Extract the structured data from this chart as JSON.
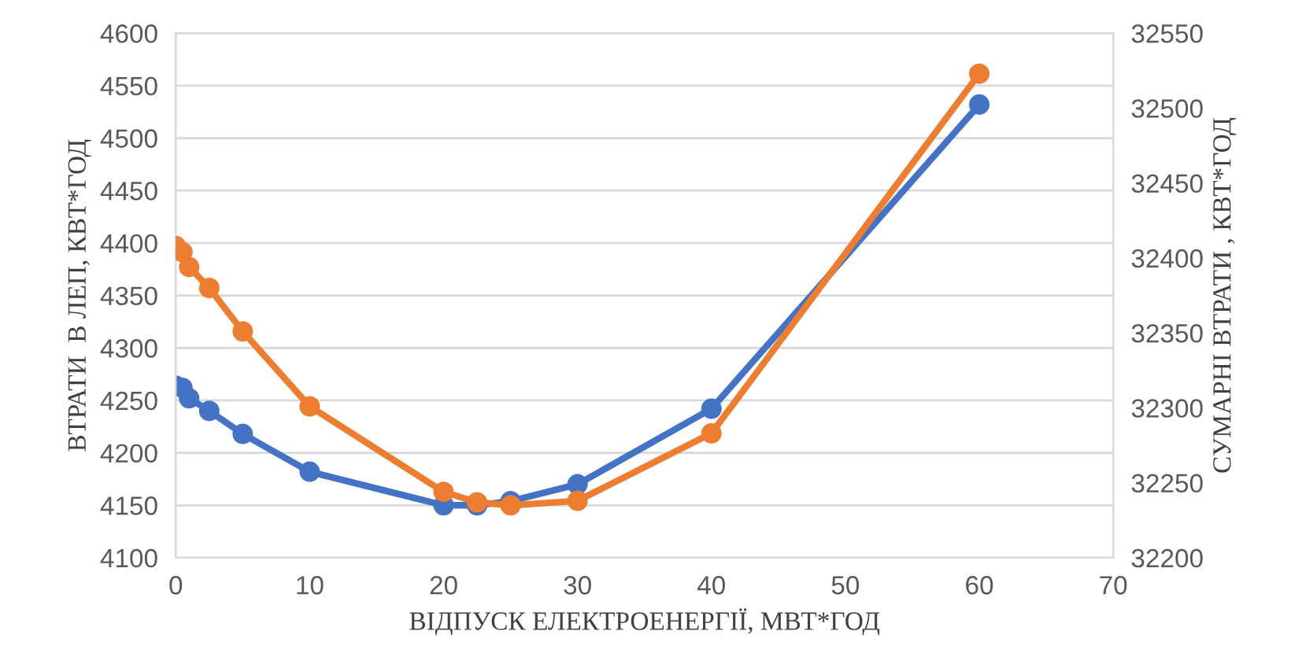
{
  "chart_data": {
    "type": "line",
    "xlabel": "ВІДПУСК ЕЛЕКТРОЕНЕРГІЇ, МВТ*ГОД",
    "ylabel": "ВТРАТИ  В ЛЕП, КВТ*ГОД",
    "y2label": "СУМАРНІ ВТРАТИ , КВТ*ГОД",
    "x": [
      0,
      0.5,
      1,
      2.5,
      5,
      10,
      20,
      22.5,
      25,
      30,
      40,
      60
    ],
    "series": [
      {
        "color": "#4472c4",
        "values": [
          4264,
          4262,
          4252,
          4240,
          4218,
          4182,
          4150,
          4150,
          4154,
          4170,
          4242,
          4532
        ]
      },
      {
        "color": "#ed7d31",
        "axis": "y2",
        "values": [
          32408,
          32404,
          32394,
          32380,
          32351,
          32301,
          32244,
          32237,
          32235,
          32238,
          32283,
          32523
        ]
      }
    ],
    "xlim": [
      0,
      70
    ],
    "xticks": [
      0,
      10,
      20,
      30,
      40,
      50,
      60,
      70
    ],
    "ylim": [
      4100,
      4600
    ],
    "yticks": [
      4100,
      4150,
      4200,
      4250,
      4300,
      4350,
      4400,
      4450,
      4500,
      4550,
      4600
    ],
    "y2lim": [
      32200,
      32550
    ],
    "y2ticks": [
      32200,
      32250,
      32300,
      32350,
      32400,
      32450,
      32500,
      32550
    ],
    "grid": "y",
    "marker": "circle",
    "line_style": "solid",
    "legend": false
  }
}
